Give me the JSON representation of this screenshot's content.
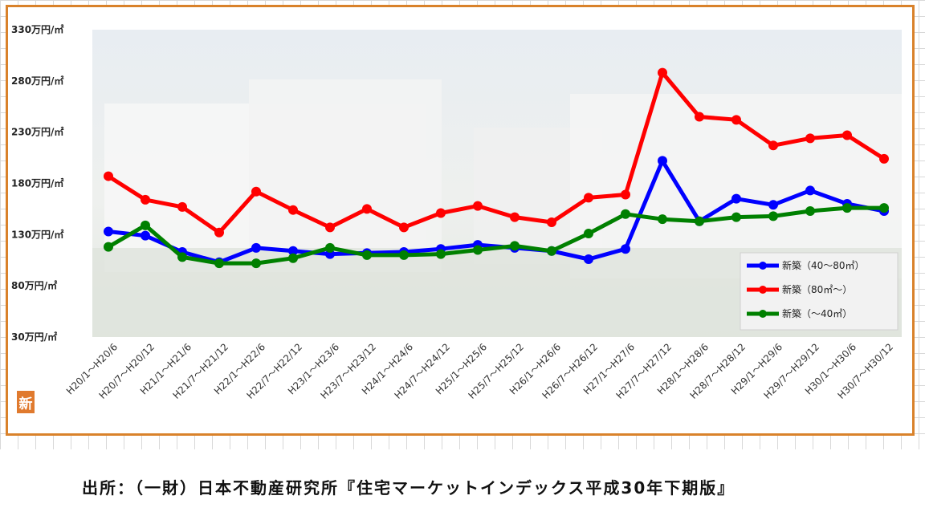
{
  "chart_data": {
    "type": "line",
    "categories": [
      "H20/1～H20/6",
      "H20/7～H20/12",
      "H21/1～H21/6",
      "H21/7～H21/12",
      "H22/1～H22/6",
      "H22/7～H22/12",
      "H23/1～H23/6",
      "H23/7～H23/12",
      "H24/1～H24/6",
      "H24/7～H24/12",
      "H25/1～H25/6",
      "H25/7～H25/12",
      "H26/1～H26/6",
      "H26/7～H26/12",
      "H27/1～H27/6",
      "H27/7～H27/12",
      "H28/1～H28/6",
      "H28/7～H28/12",
      "H29/1～H29/6",
      "H29/7～H29/12",
      "H30/1～H30/6",
      "H30/7～H30/12"
    ],
    "ylim": [
      30,
      330
    ],
    "y_ticks": [
      330,
      280,
      230,
      180,
      130,
      80,
      30
    ],
    "y_tick_labels": [
      "330万円/㎡",
      "280万円/㎡",
      "230万円/㎡",
      "180万円/㎡",
      "130万円/㎡",
      "80万円/㎡",
      "30万円/㎡"
    ],
    "series": [
      {
        "name": "新築（40～80㎡）",
        "color": "#0000ff",
        "values": [
          133,
          129,
          113,
          103,
          117,
          114,
          111,
          112,
          113,
          116,
          120,
          117,
          114,
          106,
          116,
          202,
          143,
          165,
          159,
          173,
          160,
          153
        ]
      },
      {
        "name": "新築（80㎡～）",
        "color": "#ff0000",
        "values": [
          187,
          164,
          157,
          132,
          172,
          154,
          137,
          155,
          137,
          151,
          158,
          147,
          142,
          166,
          169,
          288,
          245,
          242,
          217,
          224,
          227,
          204
        ]
      },
      {
        "name": "新築（～40㎡）",
        "color": "#008000",
        "values": [
          118,
          139,
          108,
          102,
          102,
          107,
          117,
          110,
          110,
          111,
          115,
          119,
          114,
          131,
          150,
          145,
          143,
          147,
          148,
          153,
          156,
          156
        ]
      }
    ],
    "legend_position": "bottom-right",
    "grid": false
  },
  "logo_text": "新",
  "caption": "出所：（一財）日本不動産研究所『住宅マーケットインデックス平成30年下期版』"
}
